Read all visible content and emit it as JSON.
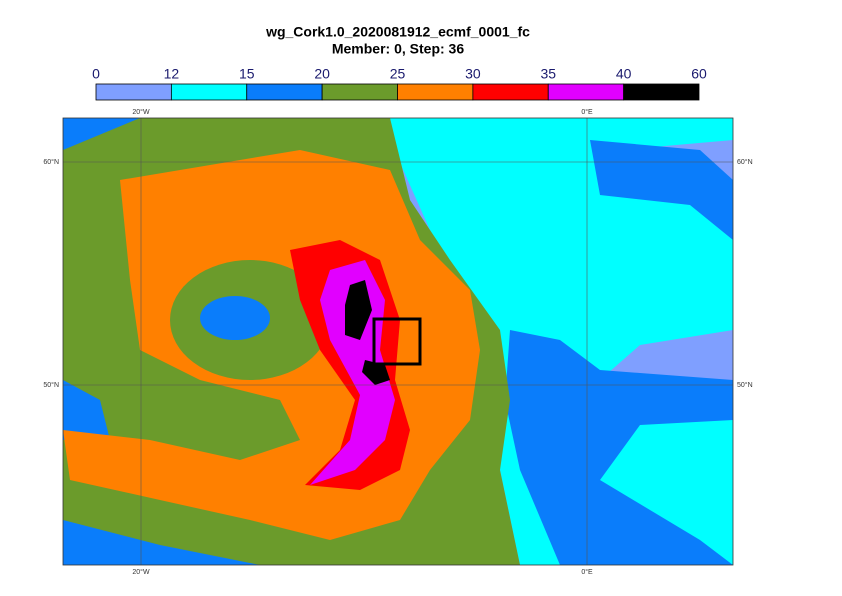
{
  "title": "wg_Cork1.0_2020081912_ecmf_0001_fc",
  "subtitle": "Member: 0, Step: 36",
  "colorbar": {
    "bins": [
      0,
      12,
      15,
      20,
      25,
      30,
      35,
      40,
      60
    ],
    "colors": [
      "#7f9fff",
      "#00ffff",
      "#0a7dfb",
      "#6b9b2b",
      "#ff8000",
      "#ff0000",
      "#e100ff",
      "#000000"
    ]
  },
  "map": {
    "lon_labels": [
      "20°W",
      "0°E"
    ],
    "lat_labels": [
      "60°N",
      "50°N"
    ]
  }
}
